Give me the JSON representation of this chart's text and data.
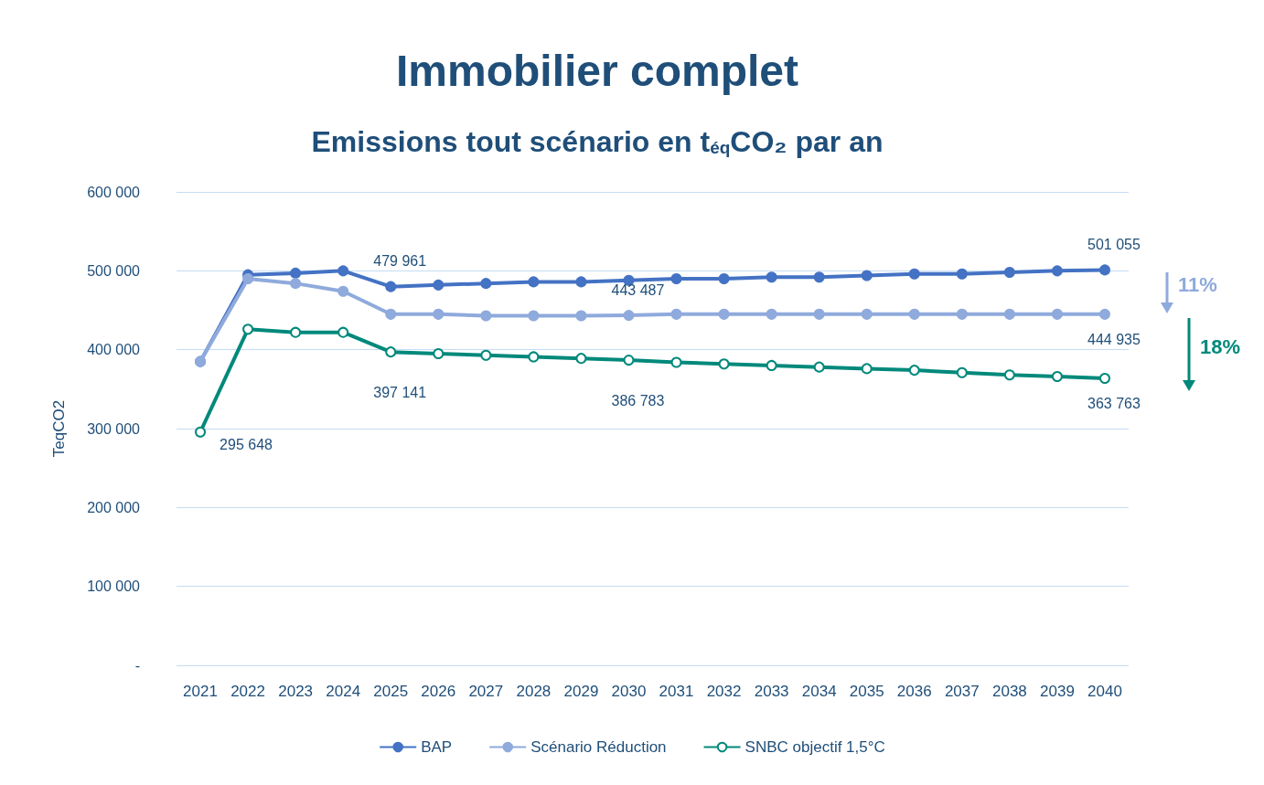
{
  "chart_data": {
    "type": "line",
    "title": "Immobilier complet",
    "subtitle": "Emissions tout scénario en t$_{éq}$CO₂ par an",
    "ylabel": "TeqCO2",
    "categories": [
      "2021",
      "2022",
      "2023",
      "2024",
      "2025",
      "2026",
      "2027",
      "2028",
      "2029",
      "2030",
      "2031",
      "2032",
      "2033",
      "2034",
      "2035",
      "2036",
      "2037",
      "2038",
      "2039",
      "2040"
    ],
    "series": [
      {
        "name": "BAP",
        "color": "#4472c4",
        "values": [
          385000,
          495000,
          497000,
          500000,
          479961,
          482000,
          484000,
          486000,
          486000,
          488000,
          490000,
          490000,
          492000,
          492000,
          494000,
          496000,
          496000,
          498000,
          500000,
          501055
        ],
        "value_labels": [
          null,
          null,
          null,
          null,
          "479 961",
          null,
          null,
          null,
          null,
          null,
          null,
          null,
          null,
          null,
          null,
          null,
          null,
          null,
          null,
          "501 055"
        ]
      },
      {
        "name": "Scénario Réduction",
        "color": "#8faadc",
        "values": [
          385000,
          490000,
          484000,
          474000,
          445000,
          445000,
          443000,
          443000,
          443000,
          443487,
          445000,
          445000,
          445000,
          445000,
          445000,
          445000,
          445000,
          445000,
          445000,
          444935
        ],
        "value_labels": [
          null,
          null,
          null,
          null,
          null,
          null,
          null,
          null,
          null,
          "443 487",
          null,
          null,
          null,
          null,
          null,
          null,
          null,
          null,
          null,
          "444 935"
        ]
      },
      {
        "name": "SNBC objectif 1,5°C",
        "color": "#00897b",
        "values": [
          295648,
          426000,
          422000,
          422000,
          397141,
          395000,
          393000,
          391000,
          389000,
          386783,
          384000,
          382000,
          380000,
          378000,
          376000,
          374000,
          371000,
          368000,
          366000,
          363763
        ],
        "value_labels": [
          "295 648",
          null,
          null,
          null,
          "397 141",
          null,
          null,
          null,
          null,
          "386 783",
          null,
          null,
          null,
          null,
          null,
          null,
          null,
          null,
          null,
          "363 763"
        ]
      }
    ],
    "ylim": [
      0,
      600000
    ],
    "yticks": [
      {
        "value": 0,
        "label": "-"
      },
      {
        "value": 100000,
        "label": "100 000"
      },
      {
        "value": 200000,
        "label": "200 000"
      },
      {
        "value": 300000,
        "label": "300 000"
      },
      {
        "value": 400000,
        "label": "400 000"
      },
      {
        "value": 500000,
        "label": "500 000"
      },
      {
        "value": 600000,
        "label": "600 000"
      }
    ],
    "grid": "y",
    "legend": "bottom",
    "marker": "circle",
    "annotations": [
      "11%",
      "18%"
    ]
  }
}
